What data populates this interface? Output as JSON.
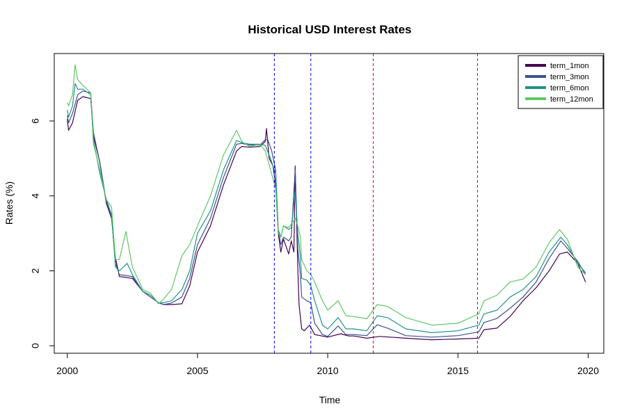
{
  "chart_data": {
    "type": "line",
    "title": "Historical USD Interest Rates",
    "xlabel": "Time",
    "ylabel": "Rates (%)",
    "xlim": [
      1999.5,
      2020.6
    ],
    "ylim": [
      -0.2,
      7.8
    ],
    "x_ticks": [
      2000,
      2005,
      2010,
      2015,
      2020
    ],
    "y_ticks": [
      0,
      2,
      4,
      6
    ],
    "legend_position": "top-right",
    "vlines": [
      {
        "x": 2007.95,
        "color": "#0000FF"
      },
      {
        "x": 2009.35,
        "color": "#0000FF"
      },
      {
        "x": 2011.75,
        "color": "#CC0000"
      },
      {
        "x": 2015.75,
        "color": "#CC0000"
      }
    ],
    "series": [
      {
        "name": "term_1mon",
        "color": "#440154",
        "points": [
          [
            2000.0,
            6.05
          ],
          [
            2000.05,
            5.75
          ],
          [
            2000.2,
            5.95
          ],
          [
            2000.4,
            6.55
          ],
          [
            2000.6,
            6.65
          ],
          [
            2000.9,
            6.6
          ],
          [
            2001.0,
            5.6
          ],
          [
            2001.25,
            4.9
          ],
          [
            2001.5,
            3.8
          ],
          [
            2001.7,
            3.4
          ],
          [
            2001.85,
            2.35
          ],
          [
            2002.0,
            1.85
          ],
          [
            2002.5,
            1.8
          ],
          [
            2002.9,
            1.45
          ],
          [
            2003.2,
            1.3
          ],
          [
            2003.5,
            1.15
          ],
          [
            2003.7,
            1.1
          ],
          [
            2004.0,
            1.1
          ],
          [
            2004.4,
            1.12
          ],
          [
            2004.7,
            1.6
          ],
          [
            2005.0,
            2.5
          ],
          [
            2005.5,
            3.2
          ],
          [
            2006.0,
            4.3
          ],
          [
            2006.5,
            5.2
          ],
          [
            2006.7,
            5.32
          ],
          [
            2007.0,
            5.3
          ],
          [
            2007.4,
            5.32
          ],
          [
            2007.6,
            5.45
          ],
          [
            2007.65,
            5.8
          ],
          [
            2007.75,
            5.0
          ],
          [
            2007.9,
            4.8
          ],
          [
            2008.0,
            4.3
          ],
          [
            2008.1,
            3.0
          ],
          [
            2008.2,
            2.5
          ],
          [
            2008.3,
            2.85
          ],
          [
            2008.5,
            2.45
          ],
          [
            2008.6,
            2.8
          ],
          [
            2008.7,
            2.5
          ],
          [
            2008.75,
            4.8
          ],
          [
            2008.85,
            2.1
          ],
          [
            2008.9,
            1.1
          ],
          [
            2009.0,
            0.45
          ],
          [
            2009.1,
            0.4
          ],
          [
            2009.3,
            0.55
          ],
          [
            2009.5,
            0.3
          ],
          [
            2010.0,
            0.23
          ],
          [
            2010.5,
            0.32
          ],
          [
            2010.8,
            0.26
          ],
          [
            2011.0,
            0.26
          ],
          [
            2011.5,
            0.2
          ],
          [
            2012.0,
            0.25
          ],
          [
            2013.0,
            0.2
          ],
          [
            2014.0,
            0.16
          ],
          [
            2015.0,
            0.18
          ],
          [
            2015.8,
            0.2
          ],
          [
            2016.0,
            0.43
          ],
          [
            2016.5,
            0.47
          ],
          [
            2017.0,
            0.78
          ],
          [
            2017.5,
            1.2
          ],
          [
            2018.0,
            1.55
          ],
          [
            2018.5,
            2.0
          ],
          [
            2018.9,
            2.45
          ],
          [
            2019.2,
            2.5
          ],
          [
            2019.6,
            2.2
          ],
          [
            2019.9,
            1.7
          ]
        ]
      },
      {
        "name": "term_3mon",
        "color": "#3B528B",
        "points": [
          [
            2000.0,
            6.15
          ],
          [
            2000.05,
            5.95
          ],
          [
            2000.2,
            6.2
          ],
          [
            2000.4,
            6.7
          ],
          [
            2000.6,
            6.8
          ],
          [
            2000.9,
            6.75
          ],
          [
            2001.0,
            5.7
          ],
          [
            2001.25,
            4.9
          ],
          [
            2001.5,
            3.85
          ],
          [
            2001.7,
            3.45
          ],
          [
            2001.85,
            2.2
          ],
          [
            2002.0,
            1.9
          ],
          [
            2002.5,
            1.85
          ],
          [
            2002.9,
            1.45
          ],
          [
            2003.2,
            1.3
          ],
          [
            2003.5,
            1.15
          ],
          [
            2003.7,
            1.1
          ],
          [
            2004.0,
            1.14
          ],
          [
            2004.4,
            1.3
          ],
          [
            2004.7,
            1.8
          ],
          [
            2005.0,
            2.7
          ],
          [
            2005.5,
            3.4
          ],
          [
            2006.0,
            4.5
          ],
          [
            2006.5,
            5.38
          ],
          [
            2006.7,
            5.4
          ],
          [
            2007.0,
            5.36
          ],
          [
            2007.4,
            5.36
          ],
          [
            2007.6,
            5.5
          ],
          [
            2007.7,
            5.5
          ],
          [
            2007.85,
            5.2
          ],
          [
            2008.0,
            4.7
          ],
          [
            2008.1,
            3.1
          ],
          [
            2008.2,
            2.7
          ],
          [
            2008.3,
            2.9
          ],
          [
            2008.5,
            2.8
          ],
          [
            2008.6,
            2.9
          ],
          [
            2008.75,
            4.7
          ],
          [
            2008.85,
            2.6
          ],
          [
            2008.95,
            1.9
          ],
          [
            2009.0,
            1.3
          ],
          [
            2009.2,
            1.2
          ],
          [
            2009.35,
            1.15
          ],
          [
            2009.5,
            0.6
          ],
          [
            2009.8,
            0.3
          ],
          [
            2010.0,
            0.25
          ],
          [
            2010.4,
            0.53
          ],
          [
            2010.7,
            0.3
          ],
          [
            2011.0,
            0.3
          ],
          [
            2011.5,
            0.27
          ],
          [
            2011.9,
            0.56
          ],
          [
            2012.3,
            0.47
          ],
          [
            2013.0,
            0.27
          ],
          [
            2014.0,
            0.23
          ],
          [
            2015.0,
            0.27
          ],
          [
            2015.8,
            0.37
          ],
          [
            2016.0,
            0.62
          ],
          [
            2016.5,
            0.73
          ],
          [
            2017.0,
            1.0
          ],
          [
            2017.5,
            1.3
          ],
          [
            2018.0,
            1.7
          ],
          [
            2018.5,
            2.33
          ],
          [
            2018.95,
            2.8
          ],
          [
            2019.2,
            2.6
          ],
          [
            2019.6,
            2.25
          ],
          [
            2019.9,
            1.9
          ]
        ]
      },
      {
        "name": "term_6mon",
        "color": "#21908C",
        "points": [
          [
            2000.0,
            6.3
          ],
          [
            2000.05,
            6.1
          ],
          [
            2000.2,
            6.4
          ],
          [
            2000.3,
            7.0
          ],
          [
            2000.4,
            6.85
          ],
          [
            2000.6,
            6.85
          ],
          [
            2000.9,
            6.7
          ],
          [
            2001.0,
            5.5
          ],
          [
            2001.25,
            4.6
          ],
          [
            2001.5,
            3.9
          ],
          [
            2001.7,
            3.5
          ],
          [
            2001.85,
            2.1
          ],
          [
            2002.0,
            2.0
          ],
          [
            2002.3,
            2.2
          ],
          [
            2002.5,
            1.9
          ],
          [
            2002.9,
            1.45
          ],
          [
            2003.2,
            1.35
          ],
          [
            2003.5,
            1.15
          ],
          [
            2003.7,
            1.15
          ],
          [
            2004.0,
            1.2
          ],
          [
            2004.4,
            1.5
          ],
          [
            2004.7,
            2.0
          ],
          [
            2005.0,
            3.0
          ],
          [
            2005.5,
            3.6
          ],
          [
            2006.0,
            4.7
          ],
          [
            2006.5,
            5.48
          ],
          [
            2006.7,
            5.42
          ],
          [
            2007.0,
            5.38
          ],
          [
            2007.4,
            5.38
          ],
          [
            2007.6,
            5.35
          ],
          [
            2007.8,
            5.0
          ],
          [
            2008.0,
            4.6
          ],
          [
            2008.1,
            3.1
          ],
          [
            2008.2,
            2.9
          ],
          [
            2008.3,
            3.2
          ],
          [
            2008.5,
            3.1
          ],
          [
            2008.6,
            3.15
          ],
          [
            2008.75,
            4.1
          ],
          [
            2008.85,
            3.0
          ],
          [
            2008.95,
            2.4
          ],
          [
            2009.0,
            1.8
          ],
          [
            2009.2,
            1.75
          ],
          [
            2009.35,
            1.6
          ],
          [
            2009.5,
            1.2
          ],
          [
            2009.8,
            0.55
          ],
          [
            2010.0,
            0.45
          ],
          [
            2010.4,
            0.75
          ],
          [
            2010.7,
            0.45
          ],
          [
            2011.0,
            0.45
          ],
          [
            2011.5,
            0.4
          ],
          [
            2011.9,
            0.8
          ],
          [
            2012.3,
            0.75
          ],
          [
            2013.0,
            0.45
          ],
          [
            2014.0,
            0.35
          ],
          [
            2015.0,
            0.4
          ],
          [
            2015.8,
            0.55
          ],
          [
            2016.0,
            0.85
          ],
          [
            2016.5,
            0.95
          ],
          [
            2017.0,
            1.3
          ],
          [
            2017.5,
            1.5
          ],
          [
            2018.0,
            1.85
          ],
          [
            2018.5,
            2.5
          ],
          [
            2018.95,
            2.9
          ],
          [
            2019.2,
            2.7
          ],
          [
            2019.6,
            2.2
          ],
          [
            2019.9,
            1.95
          ]
        ]
      },
      {
        "name": "term_12mon",
        "color": "#5DC863",
        "points": [
          [
            2000.0,
            6.5
          ],
          [
            2000.05,
            6.4
          ],
          [
            2000.2,
            6.7
          ],
          [
            2000.3,
            7.5
          ],
          [
            2000.4,
            7.1
          ],
          [
            2000.6,
            6.95
          ],
          [
            2000.9,
            6.75
          ],
          [
            2001.0,
            5.4
          ],
          [
            2001.25,
            4.7
          ],
          [
            2001.5,
            3.9
          ],
          [
            2001.7,
            3.7
          ],
          [
            2001.85,
            2.3
          ],
          [
            2002.0,
            2.3
          ],
          [
            2002.25,
            3.05
          ],
          [
            2002.5,
            2.1
          ],
          [
            2002.9,
            1.5
          ],
          [
            2003.2,
            1.4
          ],
          [
            2003.5,
            1.12
          ],
          [
            2003.7,
            1.25
          ],
          [
            2004.0,
            1.5
          ],
          [
            2004.4,
            2.4
          ],
          [
            2004.7,
            2.7
          ],
          [
            2005.0,
            3.2
          ],
          [
            2005.5,
            4.0
          ],
          [
            2006.0,
            5.1
          ],
          [
            2006.5,
            5.75
          ],
          [
            2006.7,
            5.45
          ],
          [
            2007.0,
            5.32
          ],
          [
            2007.4,
            5.38
          ],
          [
            2007.6,
            5.2
          ],
          [
            2007.8,
            4.7
          ],
          [
            2008.0,
            4.2
          ],
          [
            2008.1,
            3.0
          ],
          [
            2008.2,
            2.9
          ],
          [
            2008.3,
            3.2
          ],
          [
            2008.5,
            3.15
          ],
          [
            2008.6,
            3.25
          ],
          [
            2008.75,
            3.4
          ],
          [
            2008.85,
            3.2
          ],
          [
            2008.95,
            2.9
          ],
          [
            2009.0,
            2.3
          ],
          [
            2009.2,
            2.0
          ],
          [
            2009.35,
            1.9
          ],
          [
            2009.5,
            1.7
          ],
          [
            2009.8,
            1.2
          ],
          [
            2010.0,
            0.95
          ],
          [
            2010.4,
            1.2
          ],
          [
            2010.7,
            0.8
          ],
          [
            2011.0,
            0.78
          ],
          [
            2011.5,
            0.72
          ],
          [
            2011.9,
            1.1
          ],
          [
            2012.3,
            1.05
          ],
          [
            2013.0,
            0.75
          ],
          [
            2014.0,
            0.55
          ],
          [
            2015.0,
            0.6
          ],
          [
            2015.8,
            0.85
          ],
          [
            2016.0,
            1.2
          ],
          [
            2016.5,
            1.35
          ],
          [
            2017.0,
            1.7
          ],
          [
            2017.5,
            1.78
          ],
          [
            2018.0,
            2.1
          ],
          [
            2018.5,
            2.75
          ],
          [
            2018.9,
            3.1
          ],
          [
            2019.2,
            2.85
          ],
          [
            2019.6,
            2.1
          ],
          [
            2019.9,
            1.9
          ]
        ]
      }
    ]
  }
}
